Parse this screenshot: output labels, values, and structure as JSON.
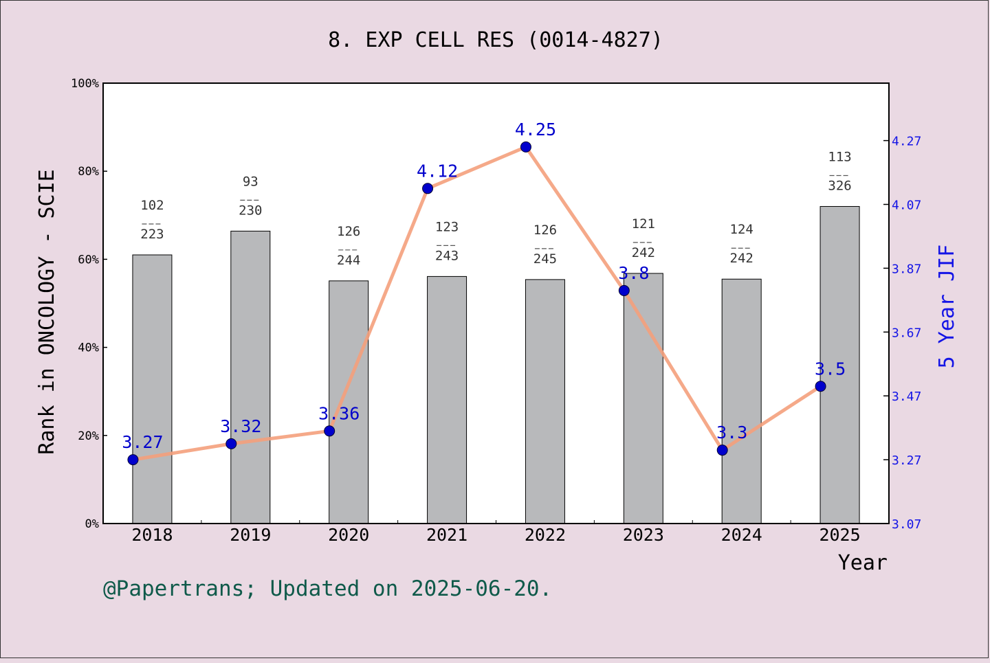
{
  "chart_data": {
    "type": "bar",
    "title": "8. EXP CELL RES (0014-4827)",
    "xlabel": "Year",
    "ylabel": "Rank in ONCOLOGY - SCIE",
    "y2label": "5 Year JIF",
    "categories": [
      "2018",
      "2019",
      "2020",
      "2021",
      "2022",
      "2023",
      "2024",
      "2025"
    ],
    "ylim": [
      0,
      100
    ],
    "yticks": [
      "0%",
      "20%",
      "40%",
      "60%",
      "80%",
      "100%"
    ],
    "y2lim": [
      3.07,
      4.45
    ],
    "y2ticks": [
      "3.07",
      "3.27",
      "3.47",
      "3.67",
      "3.87",
      "4.07",
      "4.27"
    ],
    "series": [
      {
        "name": "",
        "kind": "bar",
        "color": "#b8b9bb",
        "values": [
          61.0,
          66.4,
          55.1,
          56.1,
          55.4,
          56.8,
          55.5,
          72.0
        ],
        "rank": [
          "102",
          "93",
          "126",
          "123",
          "126",
          "121",
          "124",
          "113"
        ],
        "total": [
          "223",
          "230",
          "244",
          "243",
          "245",
          "242",
          "242",
          "326"
        ]
      },
      {
        "name": "",
        "kind": "line",
        "axis": "right",
        "color": "#f4a07c",
        "marker_color": "#0000cc",
        "values": [
          3.27,
          3.32,
          3.36,
          4.12,
          4.25,
          3.8,
          3.3,
          3.5
        ],
        "labels": [
          "3.27",
          "3.32",
          "3.36",
          "4.12",
          "4.25",
          "3.8",
          "3.3",
          "3.5"
        ]
      }
    ],
    "grid": false,
    "legend": "none"
  },
  "footer": "@Papertrans; Updated on 2025-06-20."
}
